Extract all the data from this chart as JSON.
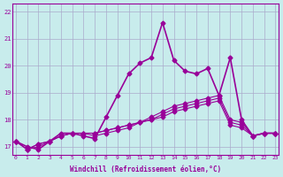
{
  "xlabel": "Windchill (Refroidissement éolien,°C)",
  "ylabel": "",
  "background_color": "#c8ecec",
  "grid_color": "#aaaacc",
  "line_color": "#990099",
  "xlim": [
    -0.3,
    23.3
  ],
  "ylim": [
    16.7,
    22.3
  ],
  "yticks": [
    17,
    18,
    19,
    20,
    21,
    22
  ],
  "xticks": [
    0,
    1,
    2,
    3,
    4,
    5,
    6,
    7,
    8,
    9,
    10,
    11,
    12,
    13,
    14,
    15,
    16,
    17,
    18,
    19,
    20,
    21,
    22,
    23
  ],
  "series": [
    [
      17.2,
      17.0,
      16.9,
      17.2,
      17.5,
      17.5,
      17.4,
      17.3,
      18.1,
      18.9,
      19.7,
      20.1,
      20.3,
      21.6,
      20.2,
      19.8,
      19.7,
      19.9,
      18.9,
      20.3,
      18.0,
      17.4,
      17.5,
      17.5
    ],
    [
      17.2,
      16.9,
      17.0,
      17.2,
      17.4,
      17.5,
      17.5,
      17.4,
      17.5,
      17.6,
      17.7,
      17.9,
      18.1,
      18.3,
      18.5,
      18.6,
      18.7,
      18.8,
      18.9,
      18.0,
      17.9,
      17.4,
      17.5,
      17.5
    ],
    [
      17.2,
      16.9,
      17.1,
      17.2,
      17.4,
      17.5,
      17.5,
      17.5,
      17.6,
      17.7,
      17.8,
      17.9,
      18.0,
      18.2,
      18.4,
      18.5,
      18.6,
      18.7,
      18.8,
      17.9,
      17.8,
      17.4,
      17.5,
      17.5
    ],
    [
      17.2,
      16.9,
      17.1,
      17.2,
      17.4,
      17.5,
      17.5,
      17.5,
      17.6,
      17.7,
      17.8,
      17.9,
      18.0,
      18.1,
      18.3,
      18.4,
      18.5,
      18.6,
      18.7,
      17.8,
      17.7,
      17.4,
      17.5,
      17.5
    ]
  ]
}
